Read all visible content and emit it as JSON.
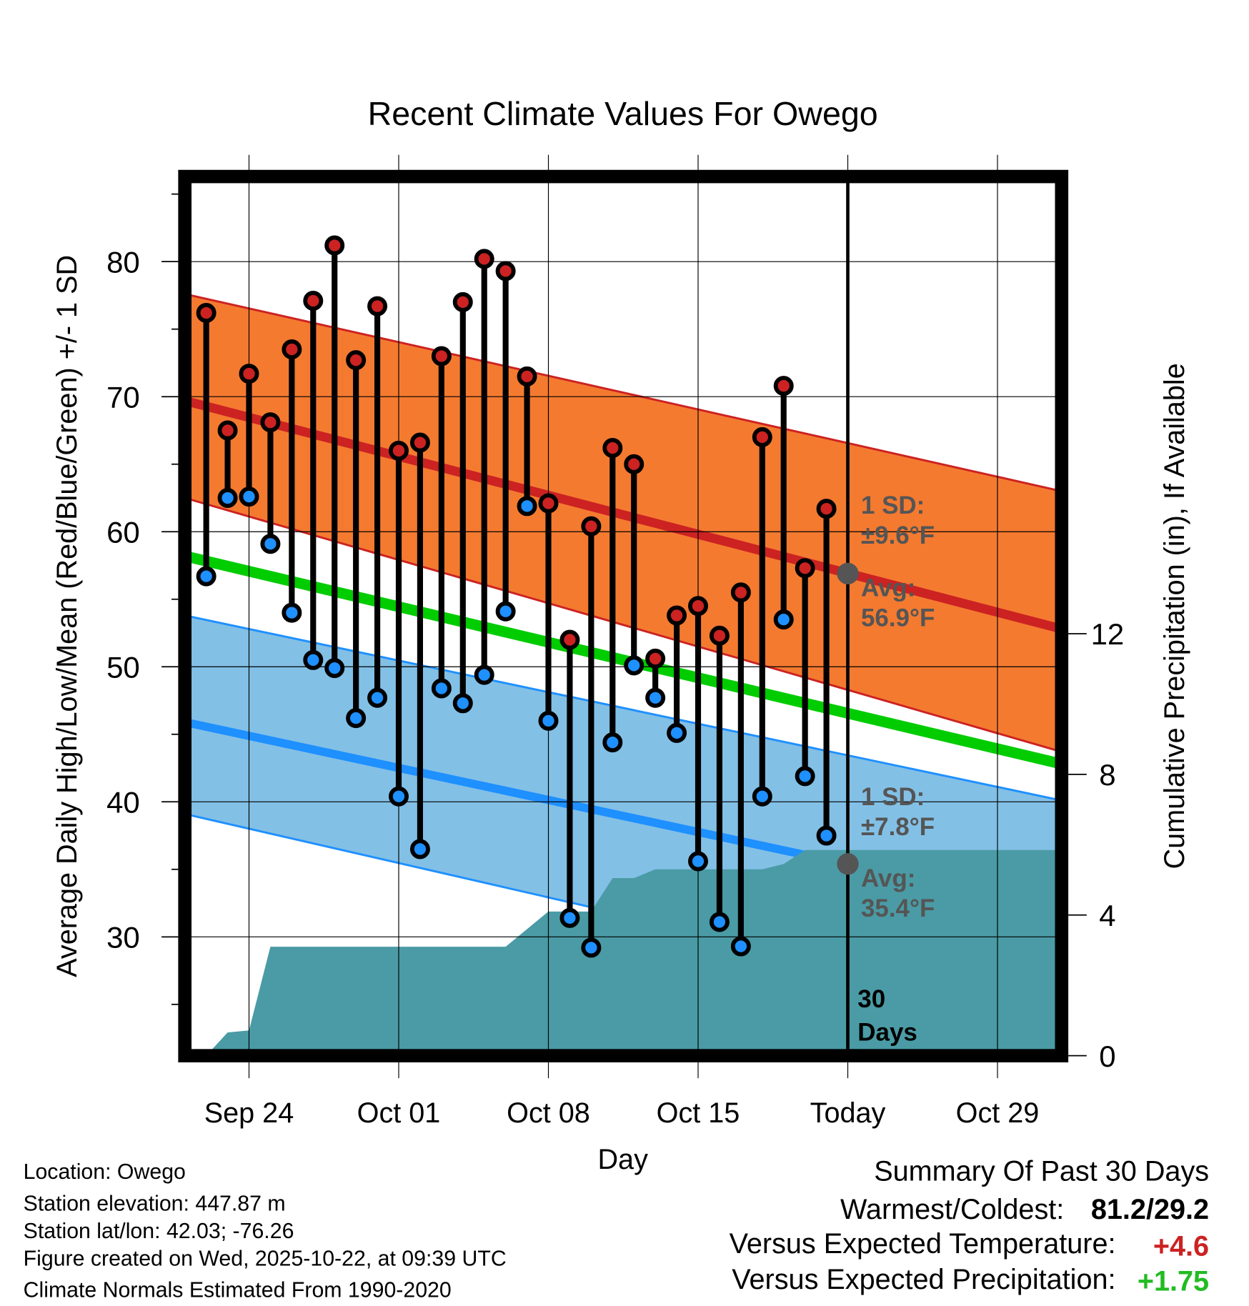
{
  "chart_data": {
    "type": "line",
    "title": "Recent Climate Values For Owego",
    "xlabel": "Day",
    "ylabel": "Average Daily High/Low/Mean (Red/Blue/Green) +/- 1 SD",
    "ylabel_right": "Cumulative Precipitation (in), If Available",
    "ylim": [
      21.2,
      86.3
    ],
    "ylim_right": [
      0,
      25
    ],
    "yticks": [
      30,
      40,
      50,
      60,
      70,
      80
    ],
    "yticks_right": [
      0,
      4,
      8,
      12
    ],
    "xlim_days": [
      0,
      41
    ],
    "x_origin": "Sep 21",
    "xticks": [
      {
        "day": 3,
        "label": "Sep 24"
      },
      {
        "day": 10,
        "label": "Oct 01"
      },
      {
        "day": 17,
        "label": "Oct 08"
      },
      {
        "day": 24,
        "label": "Oct 15"
      },
      {
        "day": 31,
        "label": "Today"
      },
      {
        "day": 38,
        "label": "Oct 29"
      }
    ],
    "dates": [
      "Sep 22",
      "Sep 23",
      "Sep 24",
      "Sep 25",
      "Sep 26",
      "Sep 27",
      "Sep 28",
      "Sep 29",
      "Sep 30",
      "Oct 01",
      "Oct 02",
      "Oct 03",
      "Oct 04",
      "Oct 05",
      "Oct 06",
      "Oct 07",
      "Oct 08",
      "Oct 09",
      "Oct 10",
      "Oct 11",
      "Oct 12",
      "Oct 13",
      "Oct 14",
      "Oct 15",
      "Oct 16",
      "Oct 17",
      "Oct 18",
      "Oct 19",
      "Oct 20",
      "Oct 21"
    ],
    "series": [
      {
        "name": "Daily High",
        "color": "#cc2222",
        "values": [
          76.2,
          67.5,
          71.7,
          68.1,
          73.5,
          77.1,
          81.2,
          72.7,
          76.7,
          66.0,
          66.6,
          73.0,
          77.0,
          80.2,
          79.3,
          71.5,
          62.1,
          52.0,
          60.4,
          66.2,
          65.0,
          50.6,
          53.8,
          54.5,
          52.3,
          55.5,
          67.0,
          70.8,
          57.3,
          61.7
        ]
      },
      {
        "name": "Daily Low",
        "color": "#1e90ff",
        "values": [
          56.7,
          62.5,
          62.6,
          59.1,
          54.0,
          50.5,
          49.9,
          46.2,
          47.7,
          40.4,
          36.5,
          48.4,
          47.3,
          49.4,
          54.1,
          61.9,
          46.0,
          31.4,
          29.2,
          44.4,
          50.1,
          47.7,
          45.1,
          35.6,
          31.1,
          29.3,
          40.4,
          53.5,
          41.9,
          37.5
        ]
      }
    ],
    "normals": {
      "high_avg": [
        69.7,
        52.8
      ],
      "high_band_upper": [
        77.6,
        63.0
      ],
      "high_band_lower": [
        62.5,
        43.7
      ],
      "mean_avg": [
        58.2,
        42.8
      ],
      "low_avg": [
        45.9,
        32.0
      ],
      "low_band_upper": [
        53.8,
        40.1
      ],
      "low_band_lower": [
        39.1,
        24.2
      ]
    },
    "precipitation": {
      "days": [
        1,
        2,
        3,
        4,
        15,
        16,
        17,
        19,
        20,
        21,
        22,
        27,
        28,
        29,
        41
      ],
      "values": [
        0,
        0.66,
        0.72,
        3.1,
        3.1,
        3.6,
        4.1,
        4.1,
        5.05,
        5.05,
        5.3,
        5.3,
        5.45,
        5.85,
        5.85
      ]
    },
    "annotations": {
      "high_sd_line1": "1 SD:",
      "high_sd_line2": "±9.6°F",
      "high_avg_line1": "Avg:",
      "high_avg_line2": "56.9°F",
      "high_avg_value": 56.9,
      "low_sd_line1": "1 SD:",
      "low_sd_line2": "±7.8°F",
      "low_avg_line1": "Avg:",
      "low_avg_line2": "35.4°F",
      "low_avg_value": 35.4,
      "days_line1": "30",
      "days_line2": "Days"
    },
    "colors": {
      "high_band": "#f47a30",
      "high": "#cc2222",
      "mean": "#00cc00",
      "low_band": "#83c0e6",
      "low": "#1e90ff",
      "precip": "#4a9ba5",
      "annot": "#555555"
    }
  },
  "info": {
    "location": "Location: Owego",
    "elevation": "Station elevation: 447.87 m",
    "latlon": "Station lat/lon: 42.03; -76.26",
    "created": "Figure created on Wed, 2025-10-22, at 09:39 UTC",
    "normals": "Climate Normals Estimated From 1990-2020"
  },
  "summary": {
    "title": "Summary Of Past 30 Days",
    "warm_cold_label": "Warmest/Coldest:",
    "warm_cold_value": "81.2/29.2",
    "temp_label": "Versus Expected Temperature:",
    "temp_value": "+4.6",
    "precip_label": "Versus Expected Precipitation:",
    "precip_value": "+1.75"
  }
}
